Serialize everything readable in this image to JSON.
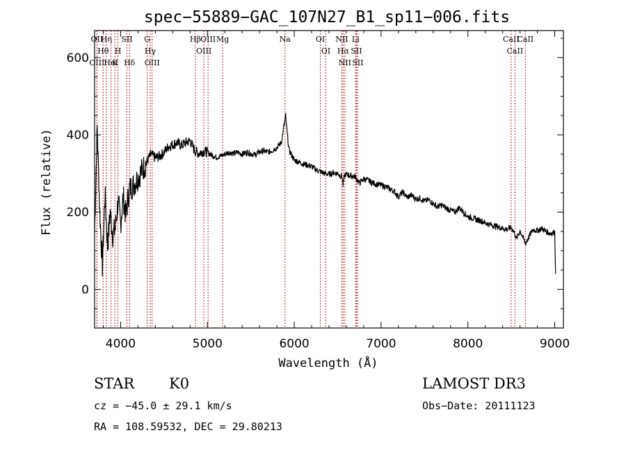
{
  "chart_data": {
    "type": "line",
    "title": "spec−55889−GAC_107N27_B1_sp11−006.fits",
    "xlabel": "Wavelength (Å)",
    "ylabel": "Flux (relative)",
    "xlim": [
      3700,
      9100
    ],
    "ylim": [
      -100,
      670
    ],
    "xticks": [
      4000,
      5000,
      6000,
      7000,
      8000,
      9000
    ],
    "yticks": [
      0,
      200,
      400,
      600
    ],
    "grid": false,
    "series": [
      {
        "name": "spectrum",
        "x": [
          3700,
          3730,
          3760,
          3790,
          3820,
          3850,
          3880,
          3910,
          3940,
          3970,
          4000,
          4030,
          4060,
          4100,
          4150,
          4200,
          4250,
          4300,
          4350,
          4400,
          4450,
          4500,
          4550,
          4600,
          4650,
          4700,
          4750,
          4800,
          4850,
          4900,
          4950,
          5000,
          5050,
          5100,
          5150,
          5200,
          5250,
          5300,
          5350,
          5400,
          5450,
          5500,
          5550,
          5600,
          5650,
          5700,
          5750,
          5800,
          5850,
          5880,
          5900,
          5920,
          5940,
          5970,
          6000,
          6050,
          6100,
          6150,
          6200,
          6250,
          6300,
          6350,
          6400,
          6450,
          6500,
          6550,
          6562,
          6580,
          6600,
          6650,
          6700,
          6750,
          6800,
          6850,
          6900,
          6950,
          7000,
          7050,
          7100,
          7150,
          7200,
          7250,
          7300,
          7350,
          7400,
          7450,
          7500,
          7550,
          7600,
          7650,
          7700,
          7750,
          7800,
          7850,
          7900,
          7950,
          8000,
          8050,
          8100,
          8150,
          8200,
          8250,
          8300,
          8350,
          8400,
          8450,
          8500,
          8540,
          8560,
          8600,
          8650,
          8662,
          8700,
          8750,
          8800,
          8850,
          8900,
          8950,
          9000,
          9010
        ],
        "y": [
          150,
          420,
          200,
          60,
          250,
          110,
          200,
          140,
          160,
          230,
          170,
          240,
          190,
          260,
          270,
          290,
          310,
          330,
          350,
          340,
          345,
          355,
          370,
          375,
          380,
          372,
          380,
          385,
          360,
          352,
          358,
          355,
          348,
          342,
          345,
          350,
          355,
          352,
          355,
          350,
          355,
          352,
          348,
          356,
          358,
          355,
          360,
          368,
          380,
          420,
          450,
          400,
          360,
          348,
          335,
          330,
          325,
          322,
          318,
          310,
          305,
          300,
          298,
          302,
          300,
          292,
          270,
          296,
          298,
          294,
          292,
          275,
          286,
          282,
          276,
          272,
          270,
          266,
          260,
          254,
          240,
          252,
          238,
          244,
          234,
          236,
          228,
          232,
          222,
          214,
          218,
          210,
          205,
          200,
          212,
          200,
          188,
          185,
          180,
          178,
          172,
          168,
          165,
          162,
          158,
          155,
          160,
          145,
          130,
          152,
          125,
          118,
          135,
          155,
          152,
          158,
          150,
          145,
          148,
          40
        ]
      }
    ],
    "spectral_lines": [
      {
        "label": "OII",
        "wavelength": 3727
      },
      {
        "label": "Hθ",
        "wavelength": 3798
      },
      {
        "label": "OIII",
        "wavelength": 3727
      },
      {
        "label": "Hη",
        "wavelength": 3835
      },
      {
        "label": "HeI",
        "wavelength": 3889
      },
      {
        "label": "K",
        "wavelength": 3934
      },
      {
        "label": "H",
        "wavelength": 3969
      },
      {
        "label": "SII",
        "wavelength": 4072
      },
      {
        "label": "Hδ",
        "wavelength": 4102
      },
      {
        "label": "G",
        "wavelength": 4305
      },
      {
        "label": "Hγ",
        "wavelength": 4341
      },
      {
        "label": "OIII",
        "wavelength": 4363
      },
      {
        "label": "Hβ",
        "wavelength": 4861
      },
      {
        "label": "OIII",
        "wavelength": 4959
      },
      {
        "label": "OIII",
        "wavelength": 5007
      },
      {
        "label": "Mg",
        "wavelength": 5175
      },
      {
        "label": "Na",
        "wavelength": 5893
      },
      {
        "label": "OI",
        "wavelength": 6300
      },
      {
        "label": "OI",
        "wavelength": 6363
      },
      {
        "label": "NII",
        "wavelength": 6548
      },
      {
        "label": "Hα",
        "wavelength": 6563
      },
      {
        "label": "NII",
        "wavelength": 6583
      },
      {
        "label": "Li",
        "wavelength": 6707
      },
      {
        "label": "SII",
        "wavelength": 6716
      },
      {
        "label": "SII",
        "wavelength": 6731
      },
      {
        "label": "CaII",
        "wavelength": 8498
      },
      {
        "label": "CaII",
        "wavelength": 8542
      },
      {
        "label": "CaII",
        "wavelength": 8662
      }
    ]
  },
  "info": {
    "class": "STAR",
    "subclass": "K0",
    "survey": "LAMOST DR3",
    "redshift": "cz = −45.0 ± 29.1 km/s",
    "obs_date": "Obs−Date: 20111123",
    "coords": "RA = 108.59532, DEC =  29.80213"
  },
  "colors": {
    "spectrum": "#000000",
    "line_marker": "#b22222",
    "axes": "#000000"
  }
}
